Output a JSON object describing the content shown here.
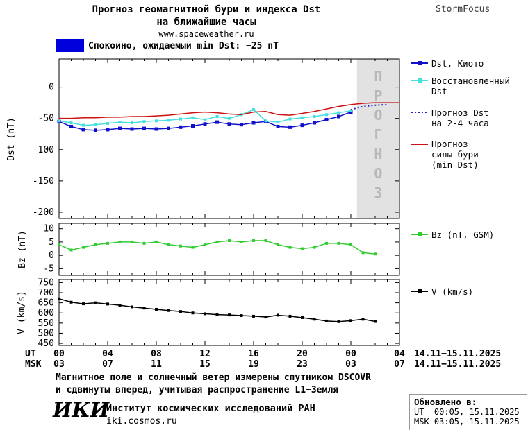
{
  "header": {
    "title_line1": "Прогноз геомагнитной бури и индекса Dst",
    "title_line2": "на ближайшие часы",
    "website": "www.spaceweather.ru",
    "brand": "StormFocus"
  },
  "status": {
    "text": "Спокойно, ожидаемый min Dst: −25 nT",
    "swatch_color": "#0000dd"
  },
  "colors": {
    "forecast_bg": "#e2e2e2",
    "forecast_text": "#b8b8b8",
    "axis": "#000000"
  },
  "chart_data": [
    {
      "type": "line",
      "name": "dst",
      "ylabel": "Dst (nT)",
      "ylim": [
        -210,
        45
      ],
      "yticks": [
        0,
        -50,
        -100,
        -150,
        -200
      ],
      "xlim": [
        0,
        28
      ],
      "xticks": [
        0,
        4,
        8,
        12,
        16,
        20,
        24,
        28
      ],
      "grid": false,
      "forecast_region": {
        "start": 24.5,
        "end": 28,
        "label": "ПРОГНОЗ"
      },
      "series": [
        {
          "id": "dst_kyoto",
          "name": "Dst, Киото",
          "color": "#1111cc",
          "style": "solid",
          "marker": "square",
          "marker_size": 5,
          "x": [
            0,
            1,
            2,
            3,
            4,
            5,
            6,
            7,
            8,
            9,
            10,
            11,
            12,
            13,
            14,
            15,
            16,
            17,
            18,
            19,
            20,
            21,
            22,
            23,
            24
          ],
          "values": [
            -55,
            -63,
            -68,
            -69,
            -68,
            -66,
            -67,
            -66,
            -67,
            -66,
            -64,
            -62,
            -59,
            -56,
            -59,
            -60,
            -57,
            -55,
            -63,
            -64,
            -61,
            -57,
            -52,
            -47,
            -40
          ]
        },
        {
          "id": "dst_restored",
          "name": "Восстановленный Dst",
          "color": "#44e0e0",
          "style": "solid",
          "marker": "square",
          "marker_size": 4,
          "x": [
            0,
            1,
            2,
            3,
            4,
            5,
            6,
            7,
            8,
            9,
            10,
            11,
            12,
            13,
            14,
            15,
            16,
            17,
            18,
            19,
            20,
            21,
            22,
            23,
            24
          ],
          "values": [
            -54,
            -57,
            -61,
            -60,
            -58,
            -56,
            -57,
            -55,
            -54,
            -53,
            -51,
            -49,
            -52,
            -47,
            -50,
            -44,
            -36,
            -54,
            -56,
            -51,
            -49,
            -47,
            -44,
            -41,
            -38
          ]
        },
        {
          "id": "dst_forecast",
          "name": "Прогноз Dst на 2-4 часа",
          "color": "#2222cc",
          "style": "dotted",
          "marker": "none",
          "x": [
            24,
            25,
            26,
            27
          ],
          "values": [
            -36,
            -31,
            -29,
            -28
          ]
        },
        {
          "id": "storm_forecast",
          "name": "Прогноз силы бури (min Dst)",
          "color": "#cc1111",
          "style": "solid",
          "marker": "none",
          "x": [
            0,
            1,
            2,
            3,
            4,
            5,
            6,
            7,
            8,
            9,
            10,
            11,
            12,
            13,
            14,
            15,
            16,
            17,
            18,
            19,
            20,
            21,
            22,
            23,
            24,
            25,
            26,
            27,
            28
          ],
          "values": [
            -50,
            -50,
            -49,
            -49,
            -48,
            -48,
            -47,
            -47,
            -46,
            -45,
            -43,
            -41,
            -40,
            -41,
            -43,
            -44,
            -40,
            -39,
            -44,
            -45,
            -42,
            -39,
            -35,
            -31,
            -28,
            -26,
            -25,
            -25,
            -25
          ]
        }
      ]
    },
    {
      "type": "line",
      "name": "bz",
      "ylabel": "Bz (nT)",
      "ylim": [
        -7.5,
        12
      ],
      "yticks": [
        10,
        5,
        0,
        -5
      ],
      "xlim": [
        0,
        28
      ],
      "xticks": [
        0,
        4,
        8,
        12,
        16,
        20,
        24,
        28
      ],
      "grid": false,
      "series": [
        {
          "id": "bz",
          "name": "Bz (nT, GSM)",
          "color": "#33cc33",
          "style": "solid",
          "marker": "square",
          "marker_size": 4,
          "x": [
            0,
            1,
            2,
            3,
            4,
            5,
            6,
            7,
            8,
            9,
            10,
            11,
            12,
            13,
            14,
            15,
            16,
            17,
            18,
            19,
            20,
            21,
            22,
            23,
            24,
            25,
            26
          ],
          "values": [
            4,
            2,
            3,
            4,
            4.5,
            5,
            5,
            4.5,
            5,
            4,
            3.5,
            3,
            4,
            5,
            5.5,
            5,
            5.5,
            5.5,
            4,
            3,
            2.5,
            3,
            4.5,
            4.5,
            4,
            1,
            0.5
          ]
        }
      ]
    },
    {
      "type": "line",
      "name": "v",
      "ylabel": "V (km/s)",
      "ylim": [
        440,
        765
      ],
      "yticks": [
        750,
        700,
        650,
        600,
        550,
        500,
        450
      ],
      "xlim": [
        0,
        28
      ],
      "xticks": [
        0,
        4,
        8,
        12,
        16,
        20,
        24,
        28
      ],
      "grid": false,
      "series": [
        {
          "id": "v",
          "name": "V (km/s)",
          "color": "#000000",
          "style": "solid",
          "marker": "square",
          "marker_size": 4,
          "x": [
            0,
            1,
            2,
            3,
            4,
            5,
            6,
            7,
            8,
            9,
            10,
            11,
            12,
            13,
            14,
            15,
            16,
            17,
            18,
            19,
            20,
            21,
            22,
            23,
            24,
            25,
            26
          ],
          "values": [
            670,
            653,
            645,
            650,
            644,
            638,
            630,
            624,
            618,
            612,
            607,
            600,
            596,
            592,
            590,
            587,
            584,
            580,
            589,
            584,
            577,
            569,
            560,
            557,
            562,
            569,
            558
          ]
        }
      ]
    }
  ],
  "xaxis": {
    "row1_label": "UT",
    "row2_label": "MSK",
    "tick_hours": [
      0,
      4,
      8,
      12,
      16,
      20,
      24,
      28
    ],
    "row1_ticks": [
      "00",
      "04",
      "08",
      "12",
      "16",
      "20",
      "00",
      "04"
    ],
    "row2_ticks": [
      "03",
      "07",
      "11",
      "15",
      "19",
      "23",
      "03",
      "07"
    ],
    "row1_date": "14.11−15.11.2025",
    "row2_date": "14.11−15.11.2025"
  },
  "legend": {
    "items": [
      {
        "label": "Dst, Киото"
      },
      {
        "label": "Восстановленный\nDst"
      },
      {
        "label": "Прогноз Dst\nна 2-4 часа"
      },
      {
        "label": "Прогноз\nсилы бури\n(min Dst)"
      },
      {
        "label": "Bz (nT, GSM)"
      },
      {
        "label": "V (km/s)"
      }
    ]
  },
  "footer": {
    "footnote_line1": "Магнитное поле и солнечный ветер измерены спутником DSCOVR",
    "footnote_line2": "и сдвинуты вперед, учитывая распространение L1−Земля",
    "logo": "ИКИ",
    "institute": "Институт космических исследований РАН",
    "site": "iki.cosmos.ru"
  },
  "updated": {
    "label": "Обновлено в:",
    "ut": "UT  00:05, 15.11.2025",
    "msk": "MSK 03:05, 15.11.2025"
  }
}
